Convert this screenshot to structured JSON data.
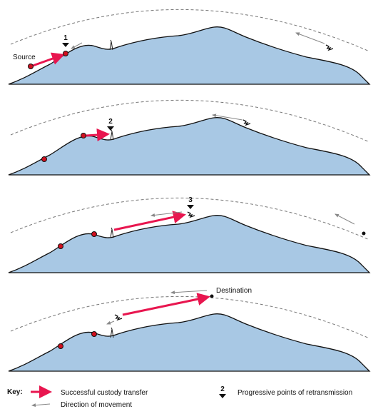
{
  "panels": [
    {
      "labels": {
        "source": "Source",
        "step": "1"
      }
    },
    {
      "labels": {
        "step": "2"
      }
    },
    {
      "labels": {
        "step": "3"
      }
    },
    {
      "labels": {
        "destination": "Destination"
      }
    }
  ],
  "key": {
    "title": "Key:",
    "custody": "Successful custody transfer",
    "movement": "Direction of movement",
    "step_symbol": "2",
    "retransmission": "Progressive points of retransmission"
  }
}
